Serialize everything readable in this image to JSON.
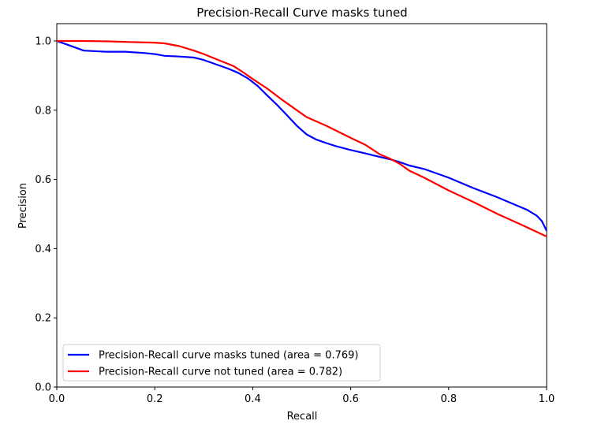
{
  "chart_data": {
    "type": "line",
    "title": "Precision-Recall Curve masks tuned",
    "xlabel": "Recall",
    "ylabel": "Precision",
    "xlim": [
      0.0,
      1.0
    ],
    "ylim": [
      0.0,
      1.05
    ],
    "xticks": [
      "0.0",
      "0.2",
      "0.4",
      "0.6",
      "0.8",
      "1.0"
    ],
    "yticks": [
      "0.0",
      "0.2",
      "0.4",
      "0.6",
      "0.8",
      "1.0"
    ],
    "grid": false,
    "legend_position": "lower-left",
    "series": [
      {
        "name": "Precision-Recall curve masks tuned (area = 0.769)",
        "color": "#0000ff",
        "x": [
          0.0,
          0.02,
          0.055,
          0.1,
          0.14,
          0.18,
          0.2,
          0.22,
          0.25,
          0.28,
          0.3,
          0.32,
          0.35,
          0.37,
          0.39,
          0.41,
          0.43,
          0.45,
          0.47,
          0.49,
          0.51,
          0.53,
          0.55,
          0.57,
          0.6,
          0.63,
          0.65,
          0.68,
          0.7,
          0.72,
          0.75,
          0.8,
          0.85,
          0.9,
          0.93,
          0.96,
          0.98,
          0.99,
          1.0
        ],
        "y": [
          1.0,
          0.99,
          0.972,
          0.969,
          0.969,
          0.965,
          0.962,
          0.957,
          0.955,
          0.952,
          0.945,
          0.935,
          0.92,
          0.908,
          0.892,
          0.87,
          0.842,
          0.815,
          0.785,
          0.755,
          0.73,
          0.715,
          0.705,
          0.696,
          0.685,
          0.675,
          0.668,
          0.658,
          0.65,
          0.64,
          0.63,
          0.605,
          0.575,
          0.548,
          0.53,
          0.512,
          0.495,
          0.48,
          0.452
        ]
      },
      {
        "name": "Precision-Recall curve not tuned (area = 0.782)",
        "color": "#ff0000",
        "x": [
          0.0,
          0.05,
          0.1,
          0.15,
          0.2,
          0.22,
          0.25,
          0.28,
          0.3,
          0.33,
          0.36,
          0.38,
          0.4,
          0.43,
          0.46,
          0.49,
          0.51,
          0.55,
          0.6,
          0.63,
          0.66,
          0.68,
          0.7,
          0.72,
          0.75,
          0.8,
          0.85,
          0.9,
          0.95,
          1.0
        ],
        "y": [
          1.0,
          1.0,
          0.999,
          0.997,
          0.995,
          0.993,
          0.985,
          0.972,
          0.962,
          0.945,
          0.928,
          0.91,
          0.89,
          0.862,
          0.83,
          0.8,
          0.78,
          0.755,
          0.72,
          0.7,
          0.672,
          0.66,
          0.645,
          0.625,
          0.605,
          0.568,
          0.535,
          0.5,
          0.468,
          0.435
        ]
      }
    ]
  }
}
